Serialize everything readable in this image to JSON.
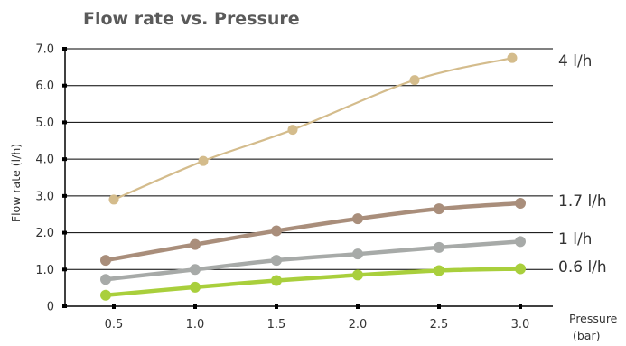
{
  "chart_data": {
    "type": "line",
    "title": "Flow rate vs. Pressure",
    "xlabel": "Pressure (bar)",
    "xlabel_lines": [
      "Pressure",
      "(bar)"
    ],
    "ylabel": "Flow rate (l/h)",
    "xlim": [
      0.2,
      3.2
    ],
    "ylim": [
      0,
      7
    ],
    "xticks": [
      0.5,
      1.0,
      1.5,
      2.0,
      2.5,
      3.0
    ],
    "xtick_labels": [
      "0.5",
      "1.0",
      "1.5",
      "2.0",
      "2.5",
      "3.0"
    ],
    "yticks": [
      0,
      1,
      2,
      3,
      4,
      5,
      6,
      7
    ],
    "ytick_labels": [
      "0",
      "1.0",
      "2.0",
      "3.0",
      "4.0",
      "5.0",
      "6.0",
      "7.0"
    ],
    "grid": "horizontal",
    "series": [
      {
        "name": "4 l/h",
        "color": "#d4bc8c",
        "x": [
          0.5,
          1.05,
          1.6,
          2.35,
          2.95
        ],
        "y": [
          2.9,
          3.95,
          4.8,
          6.15,
          6.75
        ]
      },
      {
        "name": "1.7 l/h",
        "color": "#a98e7b",
        "x": [
          0.45,
          1.0,
          1.5,
          2.0,
          2.5,
          3.0
        ],
        "y": [
          1.25,
          1.68,
          2.05,
          2.38,
          2.65,
          2.8
        ]
      },
      {
        "name": "1 l/h",
        "color": "#a7aaa8",
        "x": [
          0.45,
          1.0,
          1.5,
          2.0,
          2.5,
          3.0
        ],
        "y": [
          0.73,
          1.0,
          1.25,
          1.42,
          1.6,
          1.76
        ]
      },
      {
        "name": "0.6 l/h",
        "color": "#a9cf3c",
        "x": [
          0.45,
          1.0,
          1.5,
          2.0,
          2.5,
          3.0
        ],
        "y": [
          0.3,
          0.52,
          0.7,
          0.85,
          0.97,
          1.02
        ]
      }
    ]
  }
}
